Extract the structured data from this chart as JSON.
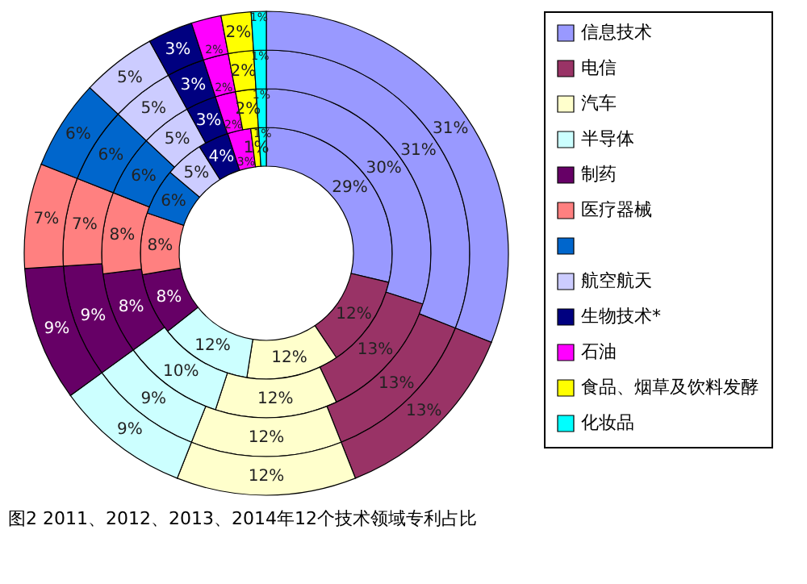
{
  "chart_data": {
    "type": "donut",
    "categories": [
      "信息技术",
      "电信",
      "汽车",
      "半导体",
      "制药",
      "医疗器械",
      null,
      "航空航天",
      "生物技术*",
      "石油",
      "食品、烟草及饮料发酵",
      "化妆品"
    ],
    "colors": [
      "#9999ff",
      "#993366",
      "#ffffcc",
      "#ccffff",
      "#660066",
      "#ff8080",
      "#0066cc",
      "#ccccff",
      "#000080",
      "#ff00ff",
      "#ffff00",
      "#00ffff"
    ],
    "series": [
      {
        "values": [
          29,
          12,
          12,
          12,
          8,
          8,
          6,
          5,
          4,
          3,
          1,
          1
        ],
        "value_labels": [
          "29%",
          "12%",
          "12%",
          "12%",
          "8%",
          "8%",
          "6%",
          "5%",
          "4%",
          "3%",
          "1%",
          "1%"
        ]
      },
      {
        "values": [
          30,
          13,
          12,
          10,
          8,
          8,
          6,
          5,
          3,
          2,
          2,
          1
        ],
        "value_labels": [
          "30%",
          "13%",
          "12%",
          "10%",
          "8%",
          "8%",
          "6%",
          "5%",
          "3%",
          "2%",
          "2%",
          "1%"
        ]
      },
      {
        "values": [
          31,
          13,
          12,
          9,
          9,
          7,
          6,
          5,
          3,
          2,
          2,
          1
        ],
        "value_labels": [
          "31%",
          "13%",
          "12%",
          "9%",
          "9%",
          "7%",
          "6%",
          "5%",
          "3%",
          "2%",
          "2%",
          "1%"
        ]
      },
      {
        "values": [
          31,
          13,
          12,
          9,
          9,
          7,
          6,
          5,
          3,
          2,
          2,
          1
        ],
        "value_labels": [
          "31%",
          "13%",
          "12%",
          "9%",
          "9%",
          "7%",
          "6%",
          "5%",
          "3%",
          "2%",
          "2%",
          "1%"
        ]
      }
    ],
    "legend": "right",
    "annotations": [
      "图2 2011、2012、2013、2014年12个技术领域专利占比"
    ]
  }
}
